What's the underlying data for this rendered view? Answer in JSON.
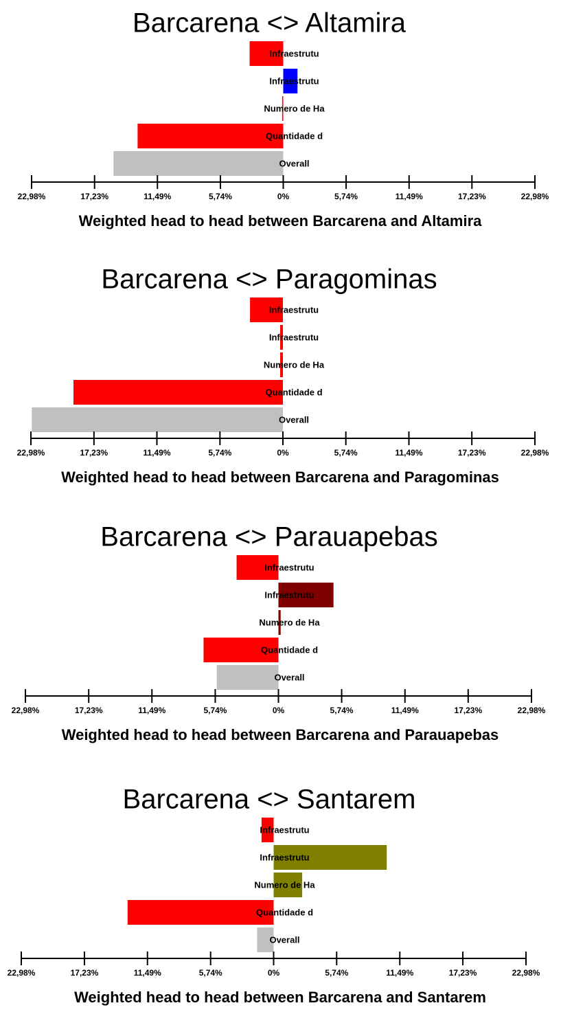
{
  "chart_data": [
    {
      "type": "bar",
      "orientation": "horizontal",
      "title": "Barcarena <> Altamira",
      "xlabel": "Weighted head to head between Barcarena and Altamira",
      "categories": [
        "Infraestrutu",
        "Infraestrutu",
        "Numero de Ha",
        "Quantidade d",
        "Overall"
      ],
      "values": [
        -3.07,
        1.3,
        -0.1,
        -13.3,
        -15.5
      ],
      "colors": [
        "#ff0000",
        "#0000ff",
        "#ff0000",
        "#ff0000",
        "#c0c0c0"
      ],
      "xlim": [
        -22.98,
        22.98
      ],
      "xticks": [
        {
          "value": -22.98,
          "label": "22,98%"
        },
        {
          "value": -17.23,
          "label": "17,23%"
        },
        {
          "value": -11.49,
          "label": "11,49%"
        },
        {
          "value": -5.74,
          "label": "5,74%"
        },
        {
          "value": 0,
          "label": "0%"
        },
        {
          "value": 5.74,
          "label": "5,74%"
        },
        {
          "value": 11.49,
          "label": "11,49%"
        },
        {
          "value": 17.23,
          "label": "17,23%"
        },
        {
          "value": 22.98,
          "label": "22,98%"
        }
      ]
    },
    {
      "type": "bar",
      "orientation": "horizontal",
      "title": "Barcarena <> Paragominas",
      "xlabel": "Weighted head to head between Barcarena and Paragominas",
      "categories": [
        "Infraestrutu",
        "Infraestrutu",
        "Numero de Ha",
        "Quantidade d",
        "Overall"
      ],
      "values": [
        -3.0,
        -0.25,
        -0.25,
        -19.1,
        -22.9
      ],
      "colors": [
        "#ff0000",
        "#ff0000",
        "#ff0000",
        "#ff0000",
        "#c0c0c0"
      ],
      "xlim": [
        -22.98,
        22.98
      ],
      "xticks": [
        {
          "value": -22.98,
          "label": "22,98%"
        },
        {
          "value": -17.23,
          "label": "17,23%"
        },
        {
          "value": -11.49,
          "label": "11,49%"
        },
        {
          "value": -5.74,
          "label": "5,74%"
        },
        {
          "value": 0,
          "label": "0%"
        },
        {
          "value": 5.74,
          "label": "5,74%"
        },
        {
          "value": 11.49,
          "label": "11,49%"
        },
        {
          "value": 17.23,
          "label": "17,23%"
        },
        {
          "value": 22.98,
          "label": "22,98%"
        }
      ]
    },
    {
      "type": "bar",
      "orientation": "horizontal",
      "title": "Barcarena <> Parauapebas",
      "xlabel": "Weighted head to head between Barcarena and Parauapebas",
      "categories": [
        "Infraestrutu",
        "Infraestrutu",
        "Numero de Ha",
        "Quantidade d",
        "Overall"
      ],
      "values": [
        -3.8,
        5.0,
        0.2,
        -6.8,
        -5.6
      ],
      "colors": [
        "#ff0000",
        "#800000",
        "#800000",
        "#ff0000",
        "#c0c0c0"
      ],
      "xlim": [
        -22.98,
        22.98
      ],
      "xticks": [
        {
          "value": -22.98,
          "label": "22,98%"
        },
        {
          "value": -17.23,
          "label": "17,23%"
        },
        {
          "value": -11.49,
          "label": "11,49%"
        },
        {
          "value": -5.74,
          "label": "5,74%"
        },
        {
          "value": 0,
          "label": "0%"
        },
        {
          "value": 5.74,
          "label": "5,74%"
        },
        {
          "value": 11.49,
          "label": "11,49%"
        },
        {
          "value": 17.23,
          "label": "17,23%"
        },
        {
          "value": 22.98,
          "label": "22,98%"
        }
      ]
    },
    {
      "type": "bar",
      "orientation": "horizontal",
      "title": "Barcarena <> Santarem",
      "xlabel": "Weighted head to head between Barcarena and Santarem",
      "categories": [
        "Infraestrutu",
        "Infraestrutu",
        "Numero de Ha",
        "Quantidade d",
        "Overall"
      ],
      "values": [
        -1.1,
        10.3,
        2.6,
        -13.3,
        -1.5
      ],
      "colors": [
        "#ff0000",
        "#808000",
        "#808000",
        "#ff0000",
        "#c0c0c0"
      ],
      "xlim": [
        -22.98,
        22.98
      ],
      "xticks": [
        {
          "value": -22.98,
          "label": "22,98%"
        },
        {
          "value": -17.23,
          "label": "17,23%"
        },
        {
          "value": -11.49,
          "label": "11,49%"
        },
        {
          "value": -5.74,
          "label": "5,74%"
        },
        {
          "value": 0,
          "label": "0%"
        },
        {
          "value": 5.74,
          "label": "5,74%"
        },
        {
          "value": 11.49,
          "label": "11,49%"
        },
        {
          "value": 17.23,
          "label": "17,23%"
        },
        {
          "value": 22.98,
          "label": "22,98%"
        }
      ]
    }
  ]
}
